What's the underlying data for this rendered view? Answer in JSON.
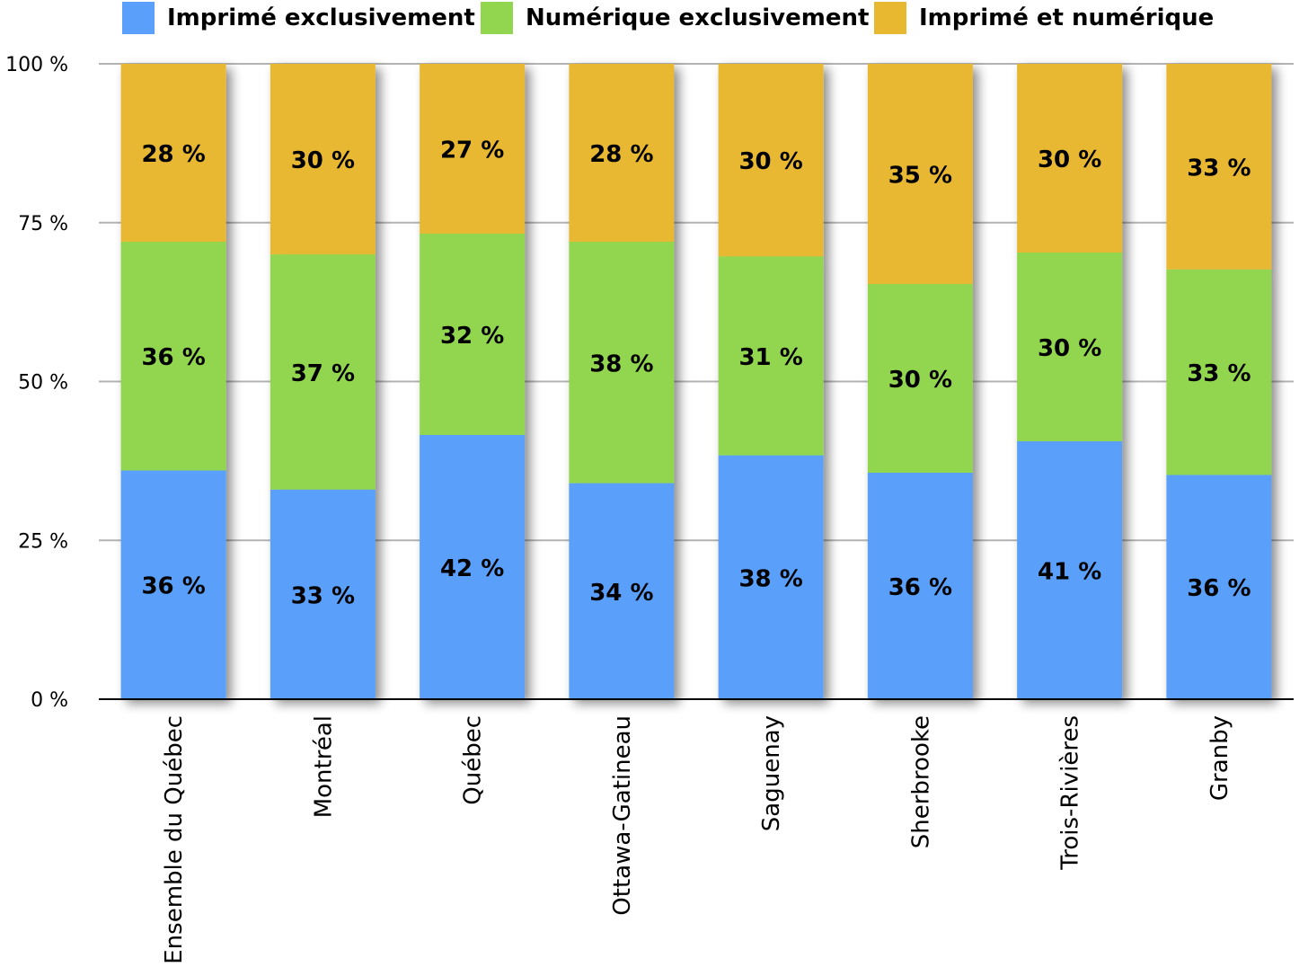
{
  "chart_data": {
    "type": "bar",
    "stacked": true,
    "categories": [
      "Ensemble du Québec",
      "Montréal",
      "Québec",
      "Ottawa-Gatineau",
      "Saguenay",
      "Sherbrooke",
      "Trois-Rivières",
      "Granby"
    ],
    "series": [
      {
        "name": "Imprimé exclusivement",
        "color": "#5aa0fb",
        "values": [
          36,
          33,
          42,
          34,
          38,
          36,
          41,
          36
        ]
      },
      {
        "name": "Numérique exclusivement",
        "color": "#92d54f",
        "values": [
          36,
          37,
          32,
          38,
          31,
          30,
          30,
          33
        ]
      },
      {
        "name": "Imprimé et numérique",
        "color": "#e8b830",
        "values": [
          28,
          30,
          27,
          28,
          30,
          35,
          30,
          33
        ]
      }
    ],
    "data_label_suffix": " %",
    "ylim": [
      0,
      100
    ],
    "yticks": [
      0,
      25,
      50,
      75,
      100
    ],
    "ytick_labels": [
      "0 %",
      "25 %",
      "50 %",
      "75 %",
      "100 %"
    ],
    "grid": true,
    "legend_position": "top"
  }
}
